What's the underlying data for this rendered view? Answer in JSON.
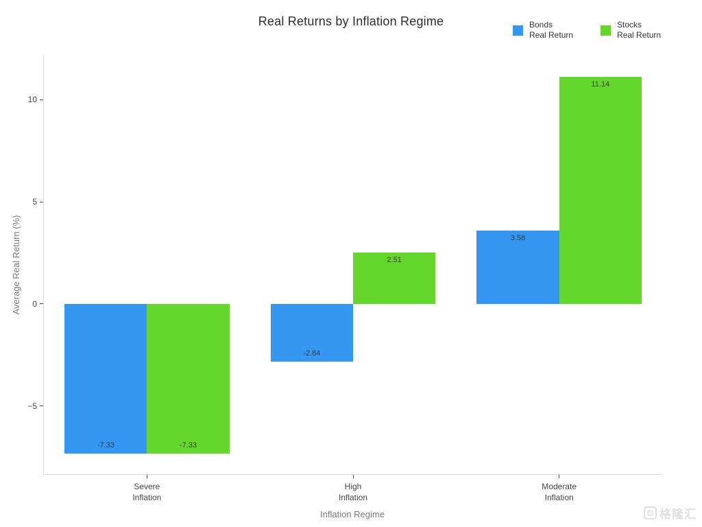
{
  "page": {
    "background": "#ffffff"
  },
  "watermark": {
    "logo_letter": "G",
    "text": "格隆汇"
  },
  "chart_data": {
    "type": "bar",
    "title": "Real Returns by Inflation Regime",
    "xlabel": "Inflation Regime",
    "ylabel": "Average Real Return (%)",
    "categories": [
      "Severe\nInflation",
      "High\nInflation",
      "Moderate\nInflation"
    ],
    "series": [
      {
        "name": "Bonds Real Return",
        "legend_label": "Bonds\nReal Return",
        "color": "#3597f2",
        "values": [
          -7.33,
          -2.84,
          3.58
        ]
      },
      {
        "name": "Stocks Real Return",
        "legend_label": "Stocks\nReal Return",
        "color": "#66d62d",
        "values": [
          -7.33,
          2.51,
          11.14
        ]
      }
    ],
    "value_labels": [
      [
        "-7.33",
        "-2.84",
        "3.58"
      ],
      [
        "-7.33",
        "2.51",
        "11.14"
      ]
    ],
    "yticks": [
      -5,
      0,
      5,
      10
    ],
    "ylim": [
      -8.37,
      12.2
    ],
    "grid": false,
    "legend_position": "top-right",
    "plot_bgcolor": "#ffffff",
    "spine_color": "#d9d9d9"
  }
}
